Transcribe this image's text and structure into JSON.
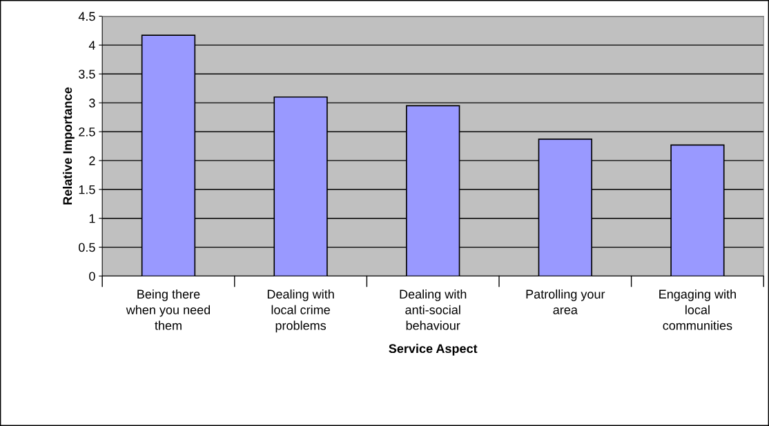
{
  "chart_data": {
    "type": "bar",
    "xlabel": "Service Aspect",
    "ylabel": "Relative Importance",
    "categories": [
      "Being there\nwhen you need\nthem",
      "Dealing with\nlocal crime\nproblems",
      "Dealing with\nanti-social\nbehaviour",
      "Patrolling your\narea",
      "Engaging with\nlocal\ncommunities"
    ],
    "values": [
      4.17,
      3.1,
      2.95,
      2.37,
      2.27
    ],
    "color": "#9999ff",
    "ylim": [
      0,
      4.5
    ],
    "yticks": [
      0,
      0.5,
      1,
      1.5,
      2,
      2.5,
      3,
      3.5,
      4,
      4.5
    ],
    "grid": "y"
  }
}
